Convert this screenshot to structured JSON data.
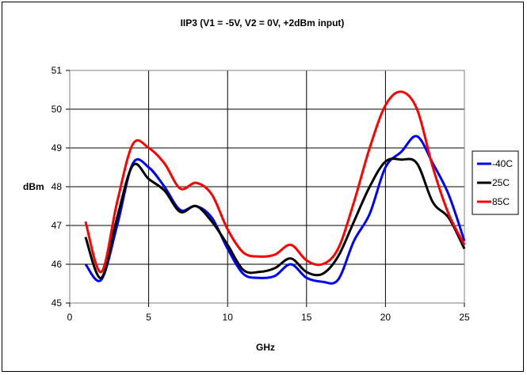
{
  "chart_data": {
    "type": "line",
    "title": "IIP3 (V1 = -5V, V2 = 0V, +2dBm input)",
    "xlabel": "GHz",
    "ylabel": "dBm",
    "xlim": [
      0,
      25
    ],
    "ylim": [
      45,
      51
    ],
    "xticks": [
      0,
      5,
      10,
      15,
      20,
      25
    ],
    "yticks": [
      45,
      46,
      47,
      48,
      49,
      50,
      51
    ],
    "grid": true,
    "legend_position": "right",
    "series": [
      {
        "name": "-40C",
        "color": "#0000ff",
        "x": [
          1,
          2,
          3,
          4,
          5,
          6,
          7,
          8,
          9,
          10,
          11,
          12,
          13,
          14,
          15,
          16,
          17,
          18,
          19,
          20,
          21,
          22,
          23,
          24,
          25
        ],
        "values": [
          46.0,
          45.6,
          47.0,
          48.6,
          48.5,
          48.0,
          47.4,
          47.5,
          47.2,
          46.4,
          45.75,
          45.65,
          45.7,
          46.0,
          45.65,
          45.55,
          45.6,
          46.6,
          47.3,
          48.5,
          48.9,
          49.3,
          48.6,
          47.8,
          46.6
        ]
      },
      {
        "name": "25C",
        "color": "#000000",
        "x": [
          1,
          2,
          3,
          4,
          5,
          6,
          7,
          8,
          9,
          10,
          11,
          12,
          13,
          14,
          15,
          16,
          17,
          18,
          19,
          20,
          21,
          22,
          23,
          24,
          25
        ],
        "values": [
          46.7,
          45.65,
          47.2,
          48.55,
          48.2,
          47.9,
          47.35,
          47.5,
          47.1,
          46.5,
          45.85,
          45.8,
          45.9,
          46.15,
          45.8,
          45.75,
          46.2,
          47.1,
          48.0,
          48.65,
          48.7,
          48.6,
          47.6,
          47.2,
          46.4
        ]
      },
      {
        "name": "85C",
        "color": "#ff0000",
        "x": [
          1,
          2,
          3,
          4,
          5,
          6,
          7,
          8,
          9,
          10,
          11,
          12,
          13,
          14,
          15,
          16,
          17,
          18,
          19,
          20,
          21,
          22,
          23,
          24,
          25
        ],
        "values": [
          47.1,
          45.8,
          47.6,
          49.1,
          49.0,
          48.6,
          47.95,
          48.1,
          47.8,
          46.9,
          46.3,
          46.2,
          46.25,
          46.5,
          46.1,
          46.0,
          46.4,
          47.6,
          49.0,
          50.1,
          50.45,
          50.0,
          48.5,
          47.3,
          46.5
        ]
      }
    ]
  }
}
